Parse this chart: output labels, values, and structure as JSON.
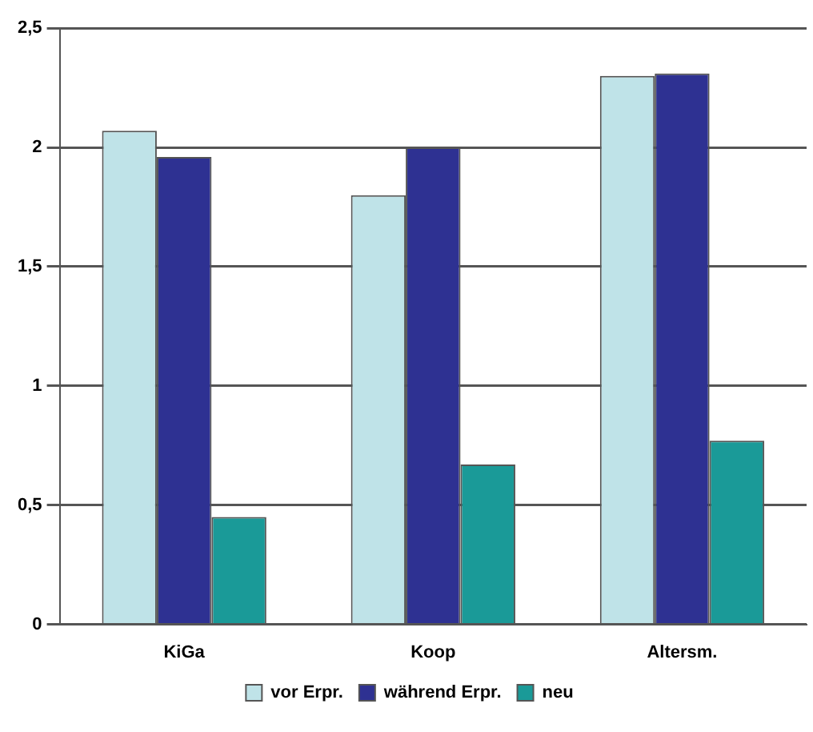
{
  "chart_data": {
    "type": "bar",
    "categories": [
      "KiGa",
      "Koop",
      "Altersm."
    ],
    "series": [
      {
        "name": "vor Erpr.",
        "color": "#bfe3e8",
        "values": [
          2.07,
          1.8,
          2.3
        ]
      },
      {
        "name": "während Erpr.",
        "color": "#2e3192",
        "values": [
          1.96,
          2.0,
          2.31
        ]
      },
      {
        "name": "neu",
        "color": "#1a9a98",
        "values": [
          0.45,
          0.67,
          0.77
        ]
      }
    ],
    "ylim": [
      0,
      2.5
    ],
    "yticks": [
      {
        "value": 0,
        "label": "0"
      },
      {
        "value": 0.5,
        "label": "0,5"
      },
      {
        "value": 1,
        "label": "1"
      },
      {
        "value": 1.5,
        "label": "1,5"
      },
      {
        "value": 2,
        "label": "2"
      },
      {
        "value": 2.5,
        "label": "2,5"
      }
    ],
    "grid": "y",
    "legend": "bottom"
  }
}
